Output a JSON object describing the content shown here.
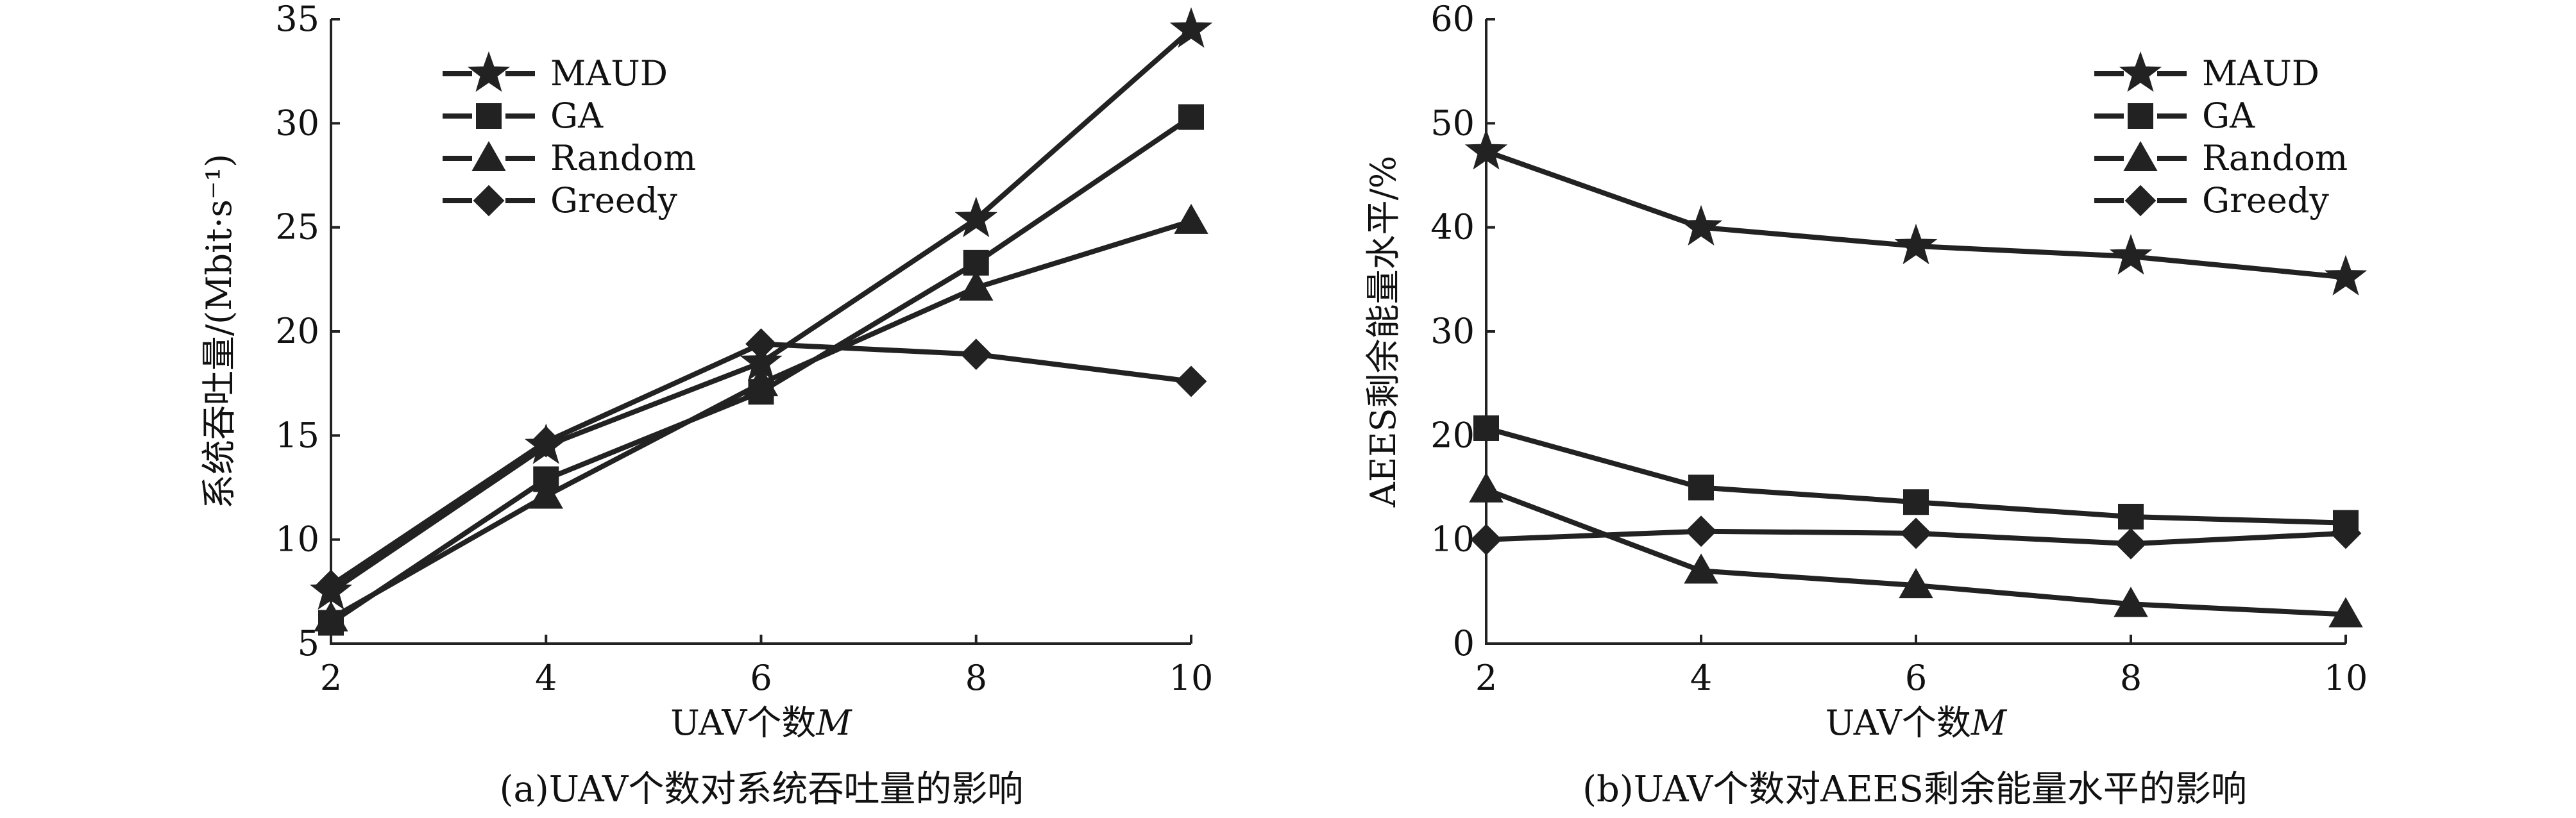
{
  "chart_data": [
    {
      "type": "line",
      "title": "",
      "caption": "(a)UAV个数对系统吞吐量的影响",
      "xlabel": "UAV个数M",
      "ylabel": "系统吞吐量/(Mbit·s⁻¹)",
      "x": [
        2,
        4,
        6,
        8,
        10
      ],
      "xlim": [
        2,
        10
      ],
      "ylim": [
        5,
        35
      ],
      "yticks": [
        5,
        10,
        15,
        20,
        25,
        30,
        35
      ],
      "grid": false,
      "legend_position": "top-left",
      "series": [
        {
          "name": "MAUD",
          "marker": "star",
          "values": [
            7.5,
            14.5,
            18.5,
            25.4,
            34.5
          ]
        },
        {
          "name": "GA",
          "marker": "square",
          "values": [
            6.0,
            12.9,
            17.1,
            23.3,
            30.3
          ]
        },
        {
          "name": "Random",
          "marker": "triangle",
          "values": [
            6.2,
            12.1,
            17.5,
            22.1,
            25.3
          ]
        },
        {
          "name": "Greedy",
          "marker": "diamond",
          "values": [
            7.8,
            14.7,
            19.4,
            18.9,
            17.6
          ]
        }
      ]
    },
    {
      "type": "line",
      "title": "",
      "caption": "(b)UAV个数对AEES剩余能量水平的影响",
      "xlabel": "UAV个数M",
      "ylabel": "AEES剩余能量水平/%",
      "x": [
        2,
        4,
        6,
        8,
        10
      ],
      "xlim": [
        2,
        10
      ],
      "ylim": [
        0,
        60
      ],
      "yticks": [
        0,
        10,
        20,
        30,
        40,
        50,
        60
      ],
      "grid": false,
      "legend_position": "top-right",
      "series": [
        {
          "name": "MAUD",
          "marker": "star",
          "values": [
            47.3,
            40.0,
            38.2,
            37.2,
            35.2
          ]
        },
        {
          "name": "GA",
          "marker": "square",
          "values": [
            20.7,
            15.0,
            13.6,
            12.2,
            11.6
          ]
        },
        {
          "name": "Random",
          "marker": "triangle",
          "values": [
            14.8,
            7.0,
            5.6,
            3.8,
            2.8
          ]
        },
        {
          "name": "Greedy",
          "marker": "diamond",
          "values": [
            10.0,
            10.8,
            10.6,
            9.6,
            10.6
          ]
        }
      ]
    }
  ]
}
